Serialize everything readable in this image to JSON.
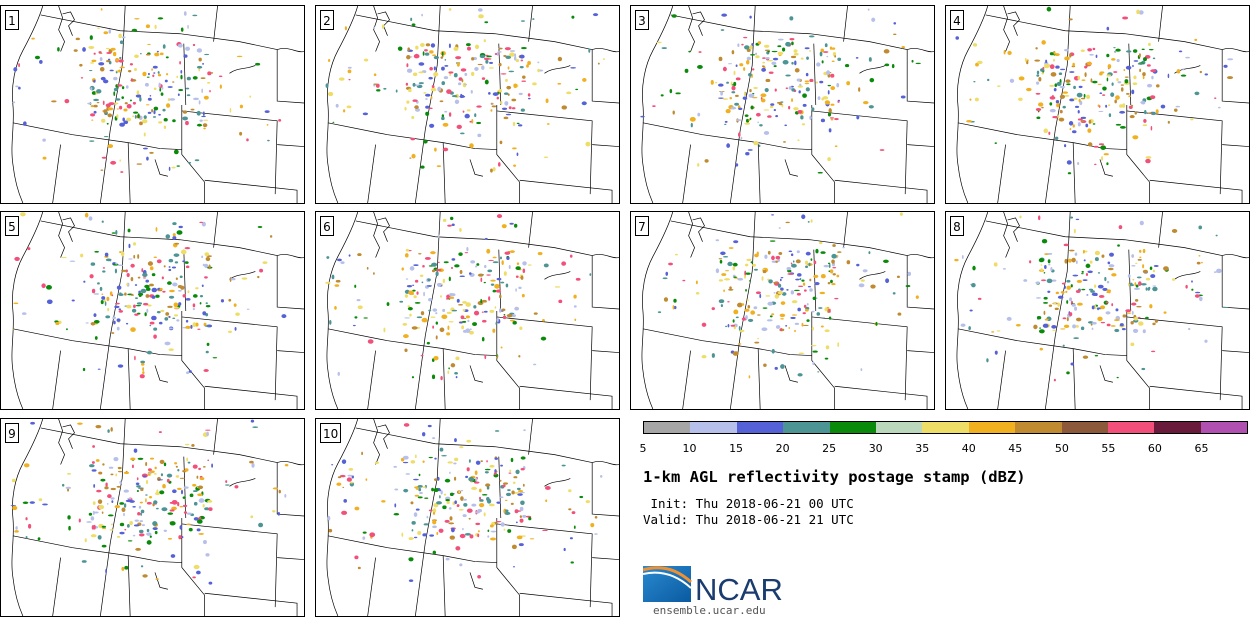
{
  "panels": [
    {
      "label": "1"
    },
    {
      "label": "2"
    },
    {
      "label": "3"
    },
    {
      "label": "4"
    },
    {
      "label": "5"
    },
    {
      "label": "6"
    },
    {
      "label": "7"
    },
    {
      "label": "8"
    },
    {
      "label": "9"
    },
    {
      "label": "10"
    }
  ],
  "colorbar": {
    "colors": [
      "#a6a6a6",
      "#b7c0ea",
      "#5561d6",
      "#4d9494",
      "#0a8a0a",
      "#bcd8bc",
      "#eedd66",
      "#f0b020",
      "#bf8a30",
      "#8c5a3a",
      "#f2507a",
      "#6a1a3a",
      "#b050b0"
    ],
    "ticks": [
      "5",
      "10",
      "15",
      "20",
      "25",
      "30",
      "35",
      "40",
      "45",
      "50",
      "55",
      "60",
      "65"
    ]
  },
  "title": "1-km AGL reflectivity postage stamp (dBZ)",
  "init": " Init: Thu 2018-06-21 00 UTC",
  "valid": "Valid: Thu 2018-06-21 21 UTC",
  "logo": {
    "text": "NCAR",
    "brand_color": "#1a3c6e",
    "accent_color": "#0d6fb8"
  },
  "url": "ensemble.ucar.edu"
}
